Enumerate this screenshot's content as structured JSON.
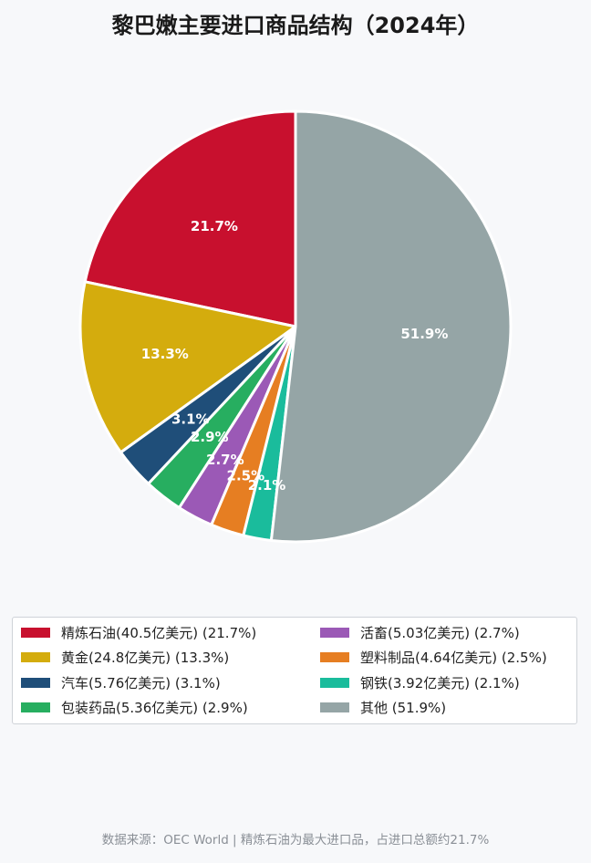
{
  "chart_data": {
    "type": "pie",
    "title": "黎巴嫩主要进口商品结构（2024年）",
    "slices": [
      {
        "label": "精炼石油",
        "legend": "精炼石油(40.5亿美元) (21.7%)",
        "value": 21.7,
        "display": "21.7%",
        "color": "#c8102e"
      },
      {
        "label": "黄金",
        "legend": "黄金(24.8亿美元) (13.3%)",
        "value": 13.3,
        "display": "13.3%",
        "color": "#d4ac0d"
      },
      {
        "label": "汽车",
        "legend": "汽车(5.76亿美元) (3.1%)",
        "value": 3.1,
        "display": "3.1%",
        "color": "#1f4e79"
      },
      {
        "label": "包装药品",
        "legend": "包装药品(5.36亿美元) (2.9%)",
        "value": 2.9,
        "display": "2.9%",
        "color": "#27ae60"
      },
      {
        "label": "活畜",
        "legend": "活畜(5.03亿美元) (2.7%)",
        "value": 2.7,
        "display": "2.7%",
        "color": "#9b59b6"
      },
      {
        "label": "塑料制品",
        "legend": "塑料制品(4.64亿美元) (2.5%)",
        "value": 2.5,
        "display": "2.5%",
        "color": "#e67e22"
      },
      {
        "label": "钢铁",
        "legend": "钢铁(3.92亿美元) (2.1%)",
        "value": 2.1,
        "display": "2.1%",
        "color": "#1abc9c"
      },
      {
        "label": "其他",
        "legend": "其他 (51.9%)",
        "value": 51.9,
        "display": "51.9%",
        "color": "#95a5a6"
      }
    ],
    "legend_placement": "bottom",
    "source_note": "数据来源：OEC World | 精炼石油为最大进口品，占进口总额约21.7%"
  }
}
